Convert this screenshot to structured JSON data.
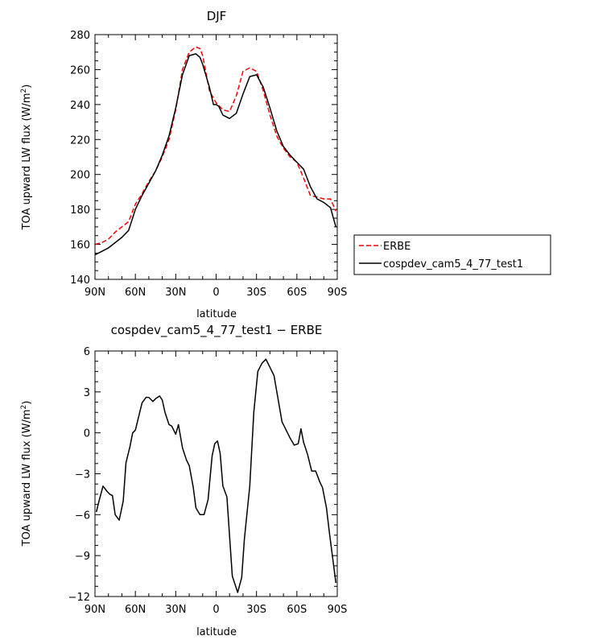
{
  "chart_data": [
    {
      "type": "line",
      "title": "DJF",
      "xlabel": "latitude",
      "ylabel": "TOA upward LW flux (W/m²)",
      "xlim": [
        90,
        -90
      ],
      "ylim": [
        140,
        280
      ],
      "xticks": [
        90,
        60,
        30,
        0,
        -30,
        -60,
        -90
      ],
      "xtick_labels": [
        "90N",
        "60N",
        "30N",
        "0",
        "30S",
        "60S",
        "90S"
      ],
      "yticks": [
        140,
        160,
        180,
        200,
        220,
        240,
        260,
        280
      ],
      "ytick_labels": [
        "140",
        "160",
        "180",
        "200",
        "220",
        "240",
        "260",
        "280"
      ],
      "legend_position": "right",
      "series": [
        {
          "name": "ERBE",
          "color": "#ff0000",
          "dash": "dashed",
          "x": [
            90,
            85,
            80,
            75,
            70,
            65,
            60,
            55,
            50,
            45,
            40,
            35,
            30,
            25,
            20,
            15,
            12,
            10,
            5,
            0,
            -5,
            -10,
            -15,
            -20,
            -25,
            -30,
            -35,
            -40,
            -45,
            -50,
            -55,
            -60,
            -65,
            -70,
            -75,
            -80,
            -85,
            -89
          ],
          "values": [
            160,
            161,
            163,
            167,
            170,
            173,
            183,
            189,
            196,
            202,
            210,
            220,
            237,
            260,
            270,
            273,
            272,
            268,
            248,
            241,
            237,
            236,
            245,
            259,
            261,
            259,
            248,
            234,
            222,
            215,
            210,
            207,
            198,
            188,
            187,
            186,
            186,
            179
          ]
        },
        {
          "name": "cospdev_cam5_4_77_test1",
          "color": "#000000",
          "dash": "solid",
          "x": [
            90,
            85,
            80,
            75,
            70,
            65,
            60,
            55,
            50,
            45,
            40,
            35,
            30,
            25,
            20,
            15,
            12,
            10,
            5,
            2,
            0,
            -2,
            -5,
            -10,
            -15,
            -20,
            -25,
            -30,
            -35,
            -40,
            -45,
            -50,
            -55,
            -60,
            -65,
            -70,
            -75,
            -80,
            -85,
            -89
          ],
          "values": [
            154,
            156,
            158,
            161,
            164,
            168,
            180,
            188,
            195,
            202,
            211,
            222,
            238,
            257,
            268,
            269,
            267,
            263,
            250,
            240,
            240,
            239,
            234,
            232,
            235,
            246,
            256,
            257,
            250,
            238,
            225,
            216,
            211,
            207,
            203,
            193,
            186,
            184,
            181,
            170
          ]
        }
      ]
    },
    {
      "type": "line",
      "title": "cospdev_cam5_4_77_test1 − ERBE",
      "xlabel": "latitude",
      "ylabel": "TOA upward LW flux (W/m²)",
      "xlim": [
        90,
        -90
      ],
      "ylim": [
        -12,
        6
      ],
      "xticks": [
        90,
        60,
        30,
        0,
        -30,
        -60,
        -90
      ],
      "xtick_labels": [
        "90N",
        "60N",
        "30N",
        "0",
        "30S",
        "60S",
        "90S"
      ],
      "yticks": [
        -12,
        -9,
        -6,
        -3,
        0,
        3,
        6
      ],
      "ytick_labels": [
        "−12",
        "−9",
        "−6",
        "−3",
        "0",
        "3",
        "6"
      ],
      "series": [
        {
          "color": "#000000",
          "dash": "solid",
          "x": [
            89,
            87,
            84,
            81,
            79,
            77,
            75,
            72,
            69,
            67,
            64,
            62,
            60,
            58,
            55,
            52,
            50,
            47,
            45,
            42,
            40,
            38,
            35,
            33,
            30,
            28,
            25,
            22,
            20,
            17,
            15,
            12,
            9,
            6,
            3,
            1,
            -1,
            -3,
            -5,
            -8,
            -12,
            -16,
            -19,
            -21,
            -25,
            -28,
            -31,
            -34,
            -37,
            -40,
            -43,
            -46,
            -49,
            -52,
            -55,
            -58,
            -61,
            -63,
            -65,
            -68,
            -71,
            -74,
            -77,
            -79,
            -82,
            -84,
            -87,
            -89
          ],
          "values": [
            -5.8,
            -5.0,
            -3.9,
            -4.3,
            -4.5,
            -4.6,
            -6.0,
            -6.4,
            -5.0,
            -2.2,
            -1.0,
            0.0,
            0.2,
            1.0,
            2.2,
            2.6,
            2.6,
            2.3,
            2.5,
            2.7,
            2.4,
            1.5,
            0.6,
            0.5,
            -0.1,
            0.6,
            -1.1,
            -2.0,
            -2.4,
            -4.0,
            -5.5,
            -6.0,
            -6.0,
            -4.9,
            -1.7,
            -0.8,
            -0.6,
            -1.5,
            -3.9,
            -4.7,
            -10.5,
            -11.7,
            -10.6,
            -7.8,
            -3.9,
            1.5,
            4.5,
            5.1,
            5.4,
            4.8,
            4.2,
            2.5,
            0.8,
            0.2,
            -0.4,
            -0.9,
            -0.8,
            0.3,
            -0.7,
            -1.6,
            -2.8,
            -2.8,
            -3.6,
            -4.0,
            -5.5,
            -7.2,
            -9.5,
            -11.0
          ]
        }
      ]
    }
  ]
}
